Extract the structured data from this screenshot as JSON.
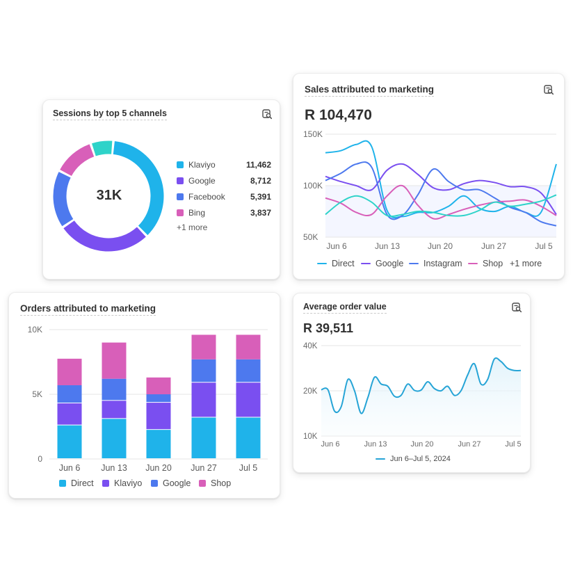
{
  "cards": {
    "sessions": {
      "title": "Sessions by top 5 channels",
      "center_label": "31K",
      "more_label": "+1 more",
      "icon": "report-search-icon"
    },
    "sales": {
      "title": "Sales attributed to marketing",
      "total": "R 104,470",
      "more_label": "+1 more",
      "icon": "report-search-icon"
    },
    "orders": {
      "title": "Orders attributed to marketing"
    },
    "aov": {
      "title": "Average order value",
      "total": "R 39,511",
      "legend_label": "Jun 6–Jul 5, 2024",
      "icon": "report-search-icon"
    }
  },
  "colors": {
    "direct": "#1fb3ea",
    "klaviyo": "#7a4ff0",
    "google": "#4d79ee",
    "bing": "#d85fb9",
    "teal": "#2ed3c9",
    "aov_line": "#26a4d6"
  },
  "chart_data": [
    {
      "id": "sessions",
      "type": "pie",
      "title": "Sessions by top 5 channels",
      "center": "31K",
      "slices": [
        {
          "name": "Klaviyo",
          "value": 11462,
          "label": "11,462",
          "color": "#1fb3ea"
        },
        {
          "name": "Google",
          "value": 8712,
          "label": "8,712",
          "color": "#7a4ff0"
        },
        {
          "name": "Facebook",
          "value": 5391,
          "label": "5,391",
          "color": "#4d79ee"
        },
        {
          "name": "Bing",
          "value": 3837,
          "label": "3,837",
          "color": "#d85fb9"
        },
        {
          "name": "",
          "value": 2100,
          "label": "",
          "color": "#2ed3c9"
        }
      ]
    },
    {
      "id": "sales",
      "type": "line",
      "title": "Sales attributed to marketing",
      "x_ticks": [
        "Jun 6",
        "Jun 13",
        "Jun 20",
        "Jun 27",
        "Jul 5"
      ],
      "y_ticks": [
        "150K",
        "100K",
        "50K"
      ],
      "ylim": [
        50000,
        150000
      ],
      "x": [
        0,
        2,
        4,
        6,
        8,
        10,
        12,
        14,
        16,
        18,
        20,
        22,
        24,
        26,
        28,
        30
      ],
      "series": [
        {
          "name": "Direct",
          "color": "#1fb3ea",
          "values": [
            132000,
            134000,
            140000,
            138000,
            76000,
            70000,
            74000,
            74000,
            80000,
            90000,
            78000,
            75000,
            80000,
            74000,
            74000,
            121000
          ]
        },
        {
          "name": "Google",
          "color": "#7a4ff0",
          "values": [
            109000,
            104000,
            100000,
            96000,
            115000,
            121000,
            111000,
            98000,
            96000,
            102000,
            105000,
            103000,
            99000,
            99000,
            93000,
            72000
          ]
        },
        {
          "name": "Instagram",
          "color": "#4d79ee",
          "values": [
            105000,
            112000,
            121000,
            118000,
            72000,
            71000,
            91000,
            116000,
            104000,
            96000,
            96000,
            88000,
            79000,
            74000,
            65000,
            61000
          ]
        },
        {
          "name": "Shop",
          "color": "#d85fb9",
          "values": [
            88000,
            83000,
            74000,
            72000,
            90000,
            100000,
            81000,
            68000,
            72000,
            77000,
            81000,
            84000,
            85000,
            86000,
            80000,
            71000
          ]
        },
        {
          "name": "",
          "color": "#2ed3c9",
          "values": [
            72000,
            84000,
            90000,
            84000,
            71000,
            72000,
            75000,
            74000,
            71000,
            71000,
            76000,
            84000,
            80000,
            82000,
            85000,
            91000
          ]
        }
      ]
    },
    {
      "id": "orders",
      "type": "bar",
      "stacked": true,
      "title": "Orders attributed to marketing",
      "categories": [
        "Jun 6",
        "Jun 13",
        "Jun 20",
        "Jun 27",
        "Jul 5"
      ],
      "y_ticks": [
        "10K",
        "5K",
        "0"
      ],
      "ylim": [
        0,
        10000
      ],
      "series": [
        {
          "name": "Direct",
          "color": "#1fb3ea",
          "values": [
            2600,
            3100,
            2250,
            3200,
            3200
          ]
        },
        {
          "name": "Klaviyo",
          "color": "#7a4ff0",
          "values": [
            1700,
            1400,
            2100,
            2700,
            2700
          ]
        },
        {
          "name": "Google",
          "color": "#4d79ee",
          "values": [
            1400,
            1700,
            650,
            1800,
            1800
          ]
        },
        {
          "name": "Shop",
          "color": "#d85fb9",
          "values": [
            2050,
            2800,
            1300,
            1900,
            1900
          ]
        }
      ]
    },
    {
      "id": "aov",
      "type": "area",
      "title": "Average order value",
      "x_ticks": [
        "Jun 6",
        "Jun 13",
        "Jun 20",
        "Jun 27",
        "Jul 5"
      ],
      "y_ticks": [
        "40K",
        "20K",
        "10K"
      ],
      "ylim": [
        10000,
        40000
      ],
      "x": [
        0,
        1,
        2,
        3,
        4,
        5,
        6,
        7,
        8,
        9,
        10,
        11,
        12,
        13,
        14,
        15,
        16,
        17,
        18,
        19,
        20,
        21,
        22,
        23,
        24,
        25,
        26,
        27,
        28,
        29,
        30
      ],
      "series": [
        {
          "name": "Jun 6–Jul 5, 2024",
          "color": "#26a4d6",
          "values": [
            20500,
            20500,
            15500,
            16500,
            25000,
            20000,
            15000,
            18500,
            26000,
            23000,
            22000,
            18800,
            19000,
            23000,
            20200,
            20300,
            24000,
            21000,
            20000,
            22000,
            19000,
            20000,
            27000,
            32000,
            23000,
            25000,
            34000,
            33000,
            30000,
            29000,
            29000
          ]
        }
      ]
    }
  ]
}
